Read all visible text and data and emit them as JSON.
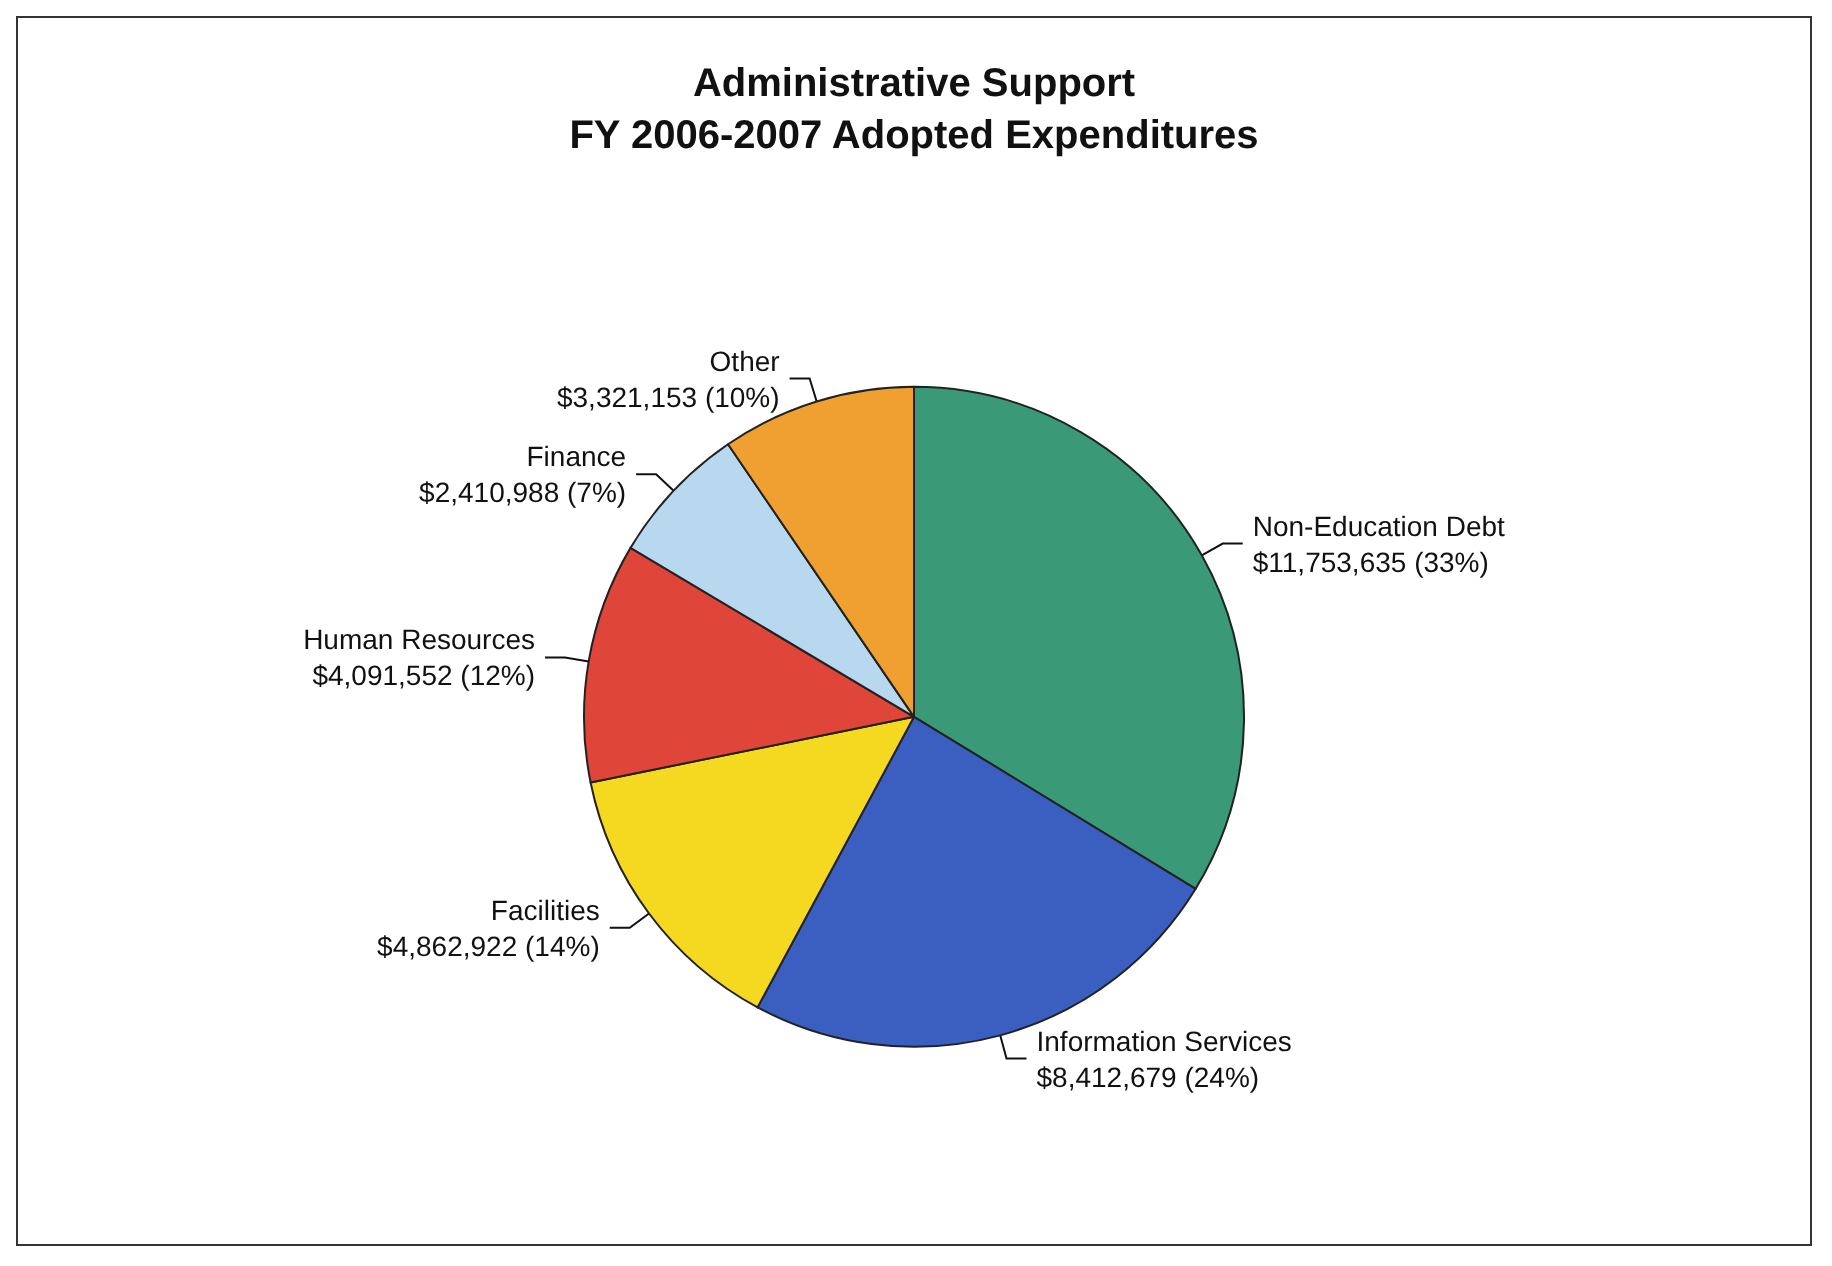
{
  "chart_data": {
    "type": "pie",
    "title": "Administrative Support",
    "subtitle": "FY 2006-2007 Adopted Expenditures",
    "categories": [
      "Non-Education Debt",
      "Information Services",
      "Facilities",
      "Human Resources",
      "Finance",
      "Other"
    ],
    "values": [
      11753635,
      8412679,
      4862922,
      4091552,
      2410988,
      3321153
    ],
    "value_labels": [
      "$11,753,635 (33%)",
      "$8,412,679 (24%)",
      "$4,862,922 (14%)",
      "$4,091,552 (12%)",
      "$2,410,988 (7%)",
      "$3,321,153 (10%)"
    ],
    "colors": [
      "#3a9a78",
      "#3a5fc0",
      "#f5d820",
      "#e0453a",
      "#b8d8f0",
      "#f0a030"
    ],
    "legend": false
  }
}
